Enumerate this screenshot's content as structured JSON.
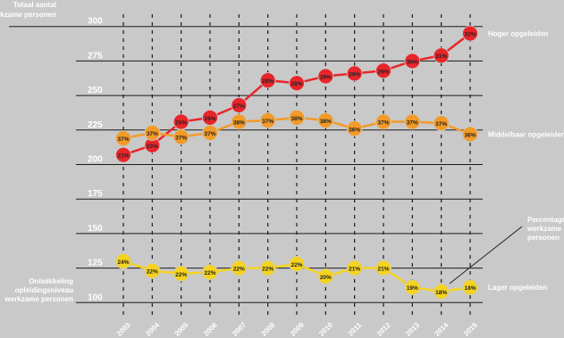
{
  "chart_data": {
    "type": "line",
    "yaxis_title": [
      "Totaal aantal",
      "werkzame personen"
    ],
    "left_note": [
      "Ontwikkeling",
      "opleidingsniveau",
      "werkzame personen"
    ],
    "callout": [
      "Percentage",
      "werkzame",
      "personen"
    ],
    "yticks": [
      100,
      125,
      150,
      175,
      200,
      225,
      250,
      275,
      300
    ],
    "ylim": [
      95,
      305
    ],
    "x": [
      "2003",
      "2004",
      "2005",
      "2006",
      "2007",
      "2008",
      "2009",
      "2010",
      "2011",
      "2012",
      "2013",
      "2014",
      "2015"
    ],
    "series": [
      {
        "name": "Hoger opgeleiden",
        "color": "#e8262a",
        "values": [
          207,
          214,
          231,
          234,
          243,
          261,
          259,
          264,
          266,
          268,
          275,
          279,
          295
        ],
        "labels": [
          "21%",
          "23%",
          "25%",
          "26%",
          "27%",
          "28%",
          "28%",
          "29%",
          "29%",
          "29%",
          "30%",
          "31%",
          "32%"
        ]
      },
      {
        "name": "Middelbaar opgeleiden",
        "color": "#f29b28",
        "values": [
          219,
          223,
          220,
          223,
          231,
          232,
          234,
          232,
          226,
          231,
          231,
          230,
          222
        ],
        "labels": [
          "37%",
          "37%",
          "37%",
          "37%",
          "38%",
          "37%",
          "38%",
          "38%",
          "36%",
          "37%",
          "37%",
          "37%",
          "36%"
        ]
      },
      {
        "name": "Lager opgeleiden",
        "color": "#f5d320",
        "values": [
          130,
          123,
          121,
          122,
          125,
          125,
          128,
          119,
          125,
          125,
          111,
          108,
          111
        ],
        "labels": [
          "24%",
          "22%",
          "22%",
          "22%",
          "22%",
          "22%",
          "22%",
          "20%",
          "21%",
          "21%",
          "19%",
          "18%",
          "18%"
        ]
      }
    ]
  }
}
